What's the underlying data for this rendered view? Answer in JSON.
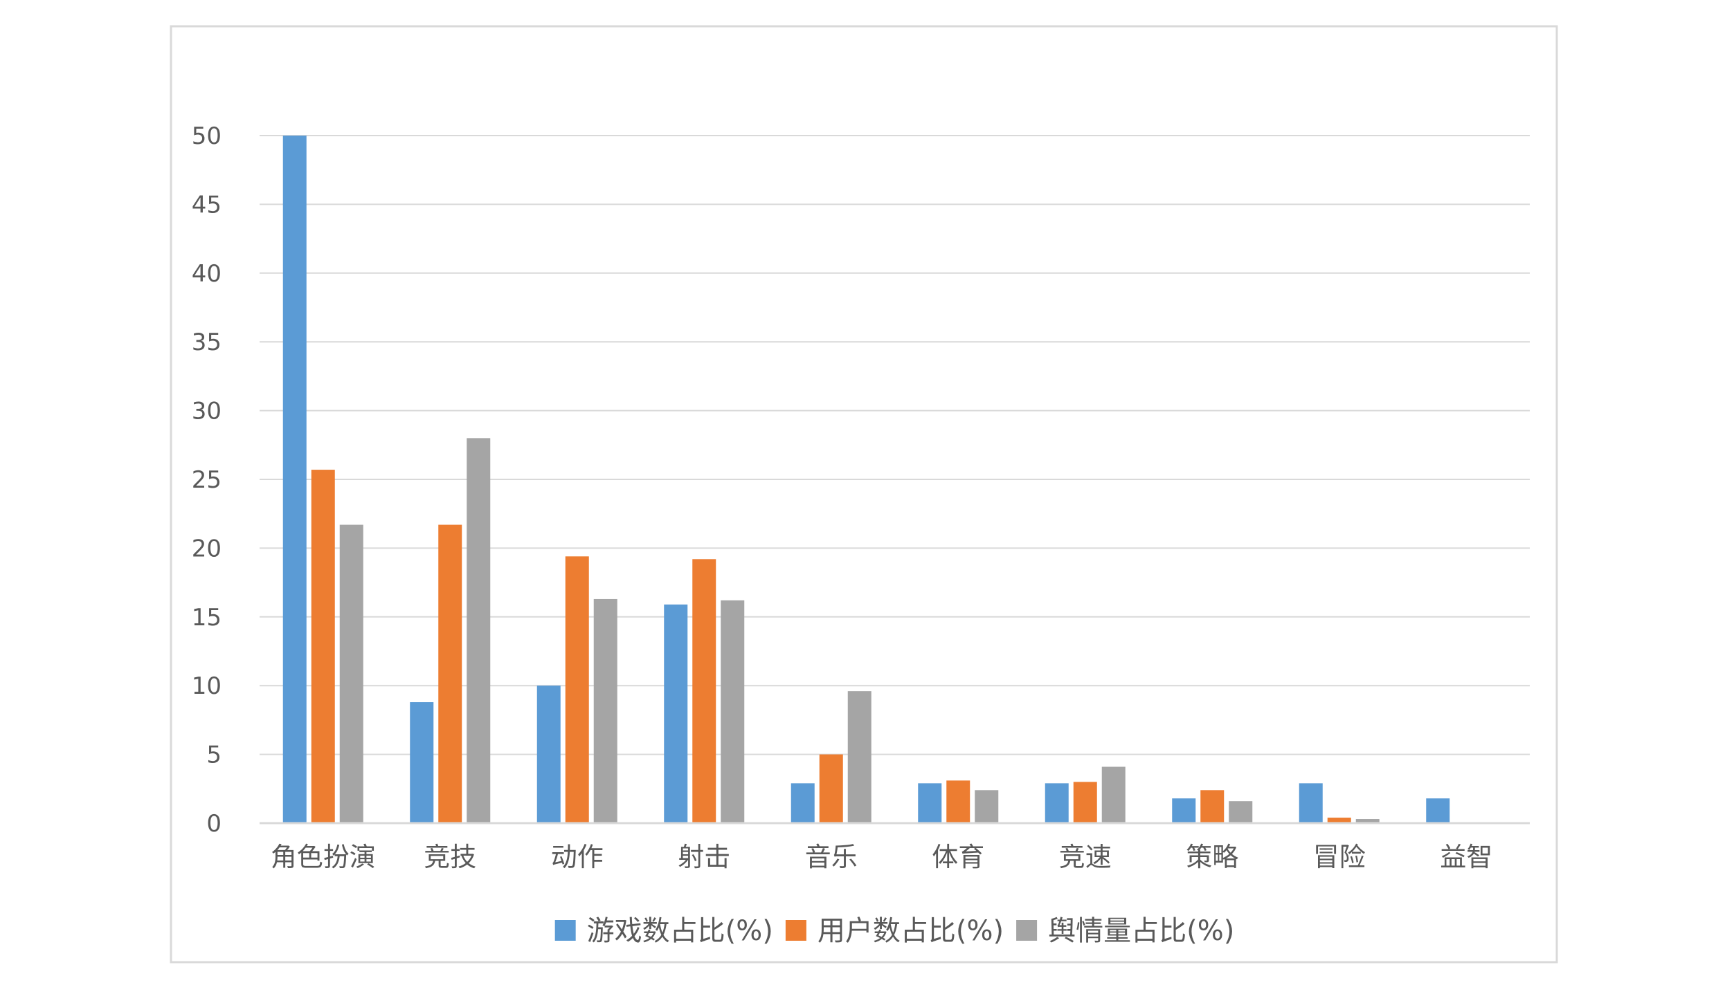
{
  "chart_data": {
    "type": "bar",
    "categories": [
      "角色扮演",
      "竞技",
      "动作",
      "射击",
      "音乐",
      "体育",
      "竞速",
      "策略",
      "冒险",
      "益智"
    ],
    "series": [
      {
        "name": "游戏数占比(%)",
        "color": "#5B9BD5",
        "values": [
          50,
          8.8,
          10,
          15.9,
          2.9,
          2.9,
          2.9,
          1.8,
          2.9,
          1.8
        ]
      },
      {
        "name": "用户数占比(%)",
        "color": "#ED7D31",
        "values": [
          25.7,
          21.7,
          19.4,
          19.2,
          5.0,
          3.1,
          3.0,
          2.4,
          0.4,
          0
        ]
      },
      {
        "name": "舆情量占比(%)",
        "color": "#A5A5A5",
        "values": [
          21.7,
          28.0,
          16.3,
          16.2,
          9.6,
          2.4,
          4.1,
          1.6,
          0.3,
          0
        ]
      }
    ],
    "title": "",
    "xlabel": "",
    "ylabel": "",
    "ylim": [
      0,
      50
    ],
    "yticks": [
      0,
      5,
      10,
      15,
      20,
      25,
      30,
      35,
      40,
      45,
      50
    ],
    "grid": true,
    "legend": "bottom",
    "gridColor": "#D9D9D9",
    "textColor": "#595959"
  }
}
